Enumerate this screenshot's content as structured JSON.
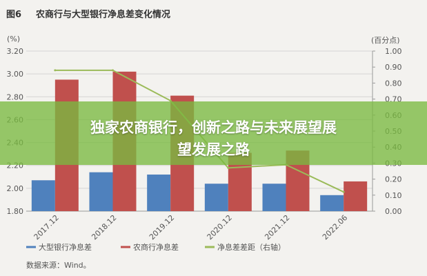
{
  "figure": {
    "label": "图6",
    "title": "农商行与大型银行净息差变化情况",
    "left_unit": "(%)",
    "right_unit": "(百分点)",
    "source": "数据来源：Wind。"
  },
  "overlay": {
    "line1": "独家农商银行，创新之路与未来展望展",
    "line2": "望发展之路"
  },
  "colors": {
    "large_bank": "#4f81bd",
    "rural_bank": "#c0504d",
    "spread": "#9bbb59"
  },
  "chart_data": {
    "type": "bar",
    "title": "农商行与大型银行净息差变化情况",
    "categories": [
      "2017.12",
      "2018.12",
      "2019.12",
      "2020.12",
      "2021.12",
      "2022.06"
    ],
    "series": [
      {
        "name": "大型银行净息差",
        "axis": "left",
        "type": "bar",
        "values": [
          2.07,
          2.14,
          2.12,
          2.04,
          2.04,
          1.94
        ]
      },
      {
        "name": "农商行净息差",
        "axis": "left",
        "type": "bar",
        "values": [
          2.95,
          3.02,
          2.81,
          2.31,
          2.33,
          2.06
        ]
      },
      {
        "name": "净息差差距（右轴）",
        "axis": "right",
        "type": "line",
        "values": [
          0.88,
          0.88,
          0.69,
          0.27,
          0.29,
          0.12
        ]
      }
    ],
    "left_axis": {
      "label": "(%)",
      "ylim": [
        1.8,
        3.2
      ],
      "ticks": [
        "1.80",
        "2.00",
        "2.20",
        "2.40",
        "2.60",
        "2.80",
        "3.00",
        "3.20"
      ]
    },
    "right_axis": {
      "label": "(百分点)",
      "ylim": [
        0,
        1.0
      ],
      "ticks": [
        "0.00",
        "0.10",
        "0.20",
        "0.30",
        "0.40",
        "0.50",
        "0.60",
        "0.70",
        "0.80",
        "0.90",
        "1.00"
      ]
    },
    "grid": true,
    "legend_position": "bottom"
  }
}
